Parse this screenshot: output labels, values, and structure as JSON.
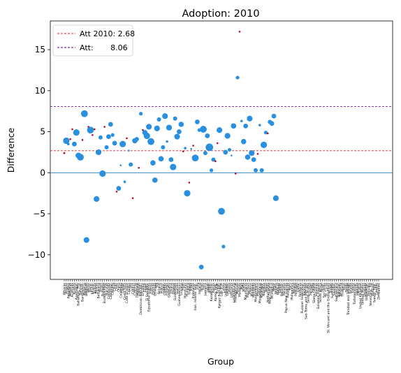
{
  "chart_data": {
    "type": "scatter",
    "title": "Adoption: 2010",
    "xlabel": "Group",
    "ylabel": "Difference",
    "ylim": [
      -13,
      18.5
    ],
    "yticks": [
      -10,
      -5,
      0,
      5,
      10,
      15
    ],
    "ytick_labels": [
      "−10",
      "−5",
      "0",
      "5",
      "10",
      "15"
    ],
    "grid": false,
    "legend_position": "top-left",
    "reference_lines": [
      {
        "label": "Att 2010: 2.68",
        "value": 2.68,
        "color": "#d62728",
        "style": "dashed"
      },
      {
        "label": "Att:       8.06",
        "value": 8.06,
        "color": "#4b0082",
        "style": "dashed"
      },
      {
        "label": "",
        "value": 0,
        "color": "#1f77b4",
        "style": "solid"
      }
    ],
    "colors": {
      "treated": "#2a8fdf",
      "small": "#b30b1d"
    },
    "categories": [
      "Albania",
      "Angola",
      "Argentina",
      "Armenia",
      "Australia",
      "Austria",
      "Azerbaijan",
      "Bahamas, The",
      "Bahrain",
      "Bangladesh",
      "Belarus",
      "Belgium",
      "Belize",
      "Benin",
      "Bhutan",
      "Bolivia",
      "Bosnia",
      "Botswana",
      "Brazil",
      "Bulgaria",
      "Burkina Faso",
      "Burundi",
      "Cambodia",
      "Cameroon",
      "Canada",
      "Chad",
      "Chile",
      "China",
      "Colombia",
      "Congo",
      "Costa Rica",
      "Cote d'Ivoire",
      "Croatia",
      "Cuba",
      "Cyprus",
      "Czechia",
      "Denmark",
      "Djibouti",
      "Dominican Republic",
      "Ecuador",
      "Egypt",
      "El Salvador",
      "Equatorial Guinea",
      "Eritrea",
      "Estonia",
      "Ethiopia",
      "Fiji",
      "Finland",
      "France",
      "Gabon",
      "Gambia",
      "Georgia",
      "Germany",
      "Ghana",
      "Greece",
      "Guatemala",
      "Guinea",
      "Guinea-Bissau",
      "Guyana",
      "Haiti",
      "Honduras",
      "Hungary",
      "Iceland",
      "India",
      "Indonesia",
      "Iran, Islamic Rep.",
      "Iraq",
      "Ireland",
      "Israel",
      "Italy",
      "Jamaica",
      "Japan",
      "Jordan",
      "Kazakhstan",
      "Kenya",
      "Korea, Rep.",
      "Kuwait",
      "Kyrgyz Republic",
      "Lao PDR",
      "Latvia",
      "Lebanon",
      "Lesotho",
      "Liberia",
      "Lithuania",
      "Luxembourg",
      "Madagascar",
      "Malawi",
      "Malaysia",
      "Mali",
      "Malta",
      "Mauritania",
      "Mauritius",
      "Mexico",
      "Moldova",
      "Mongolia",
      "Montenegro",
      "Morocco",
      "Mozambique",
      "Myanmar",
      "Namibia",
      "Nepal",
      "Netherlands",
      "New Zealand",
      "Nicaragua",
      "Niger",
      "Nigeria",
      "Norway",
      "Oman",
      "Pakistan",
      "Panama",
      "Papua New Guinea",
      "Paraguay",
      "Peru",
      "Philippines",
      "Poland",
      "Portugal",
      "Qatar",
      "Romania",
      "Russian Federation",
      "Rwanda",
      "Sao Tome and Principe",
      "Saudi Arabia",
      "Senegal",
      "Serbia",
      "Sierra Leone",
      "Slovenia",
      "Solomon Islands",
      "South Africa",
      "Spain",
      "Sri Lanka",
      "St. Lucia",
      "St. Vincent and the Grenadines",
      "Sudan",
      "Suriname",
      "Sweden",
      "Switzerland",
      "Tajikistan",
      "Tanzania",
      "Thailand",
      "Togo",
      "Tonga",
      "Trinidad and Tobago",
      "Tunisia",
      "Turkey",
      "Turkmenistan",
      "Uganda",
      "Ukraine",
      "United Kingdom",
      "United States",
      "Uruguay",
      "Uzbekistan",
      "Vanuatu",
      "Venezuela, RB",
      "Vietnam",
      "Yemen, Rep.",
      "Zambia",
      "Zimbabwe"
    ],
    "points": [
      {
        "x": 0,
        "y": 2.4,
        "size": 1.4,
        "color": "small"
      },
      {
        "x": 1,
        "y": 3.9,
        "size": 4.6,
        "color": "treated"
      },
      {
        "x": 2,
        "y": 3.5,
        "size": 1.8,
        "color": "treated"
      },
      {
        "x": 3,
        "y": 4.1,
        "size": 1.3,
        "color": "small"
      },
      {
        "x": 4,
        "y": 5.3,
        "size": 1.3,
        "color": "small"
      },
      {
        "x": 5,
        "y": 3.5,
        "size": 3.4,
        "color": "treated"
      },
      {
        "x": 6,
        "y": 4.9,
        "size": 4.6,
        "color": "treated"
      },
      {
        "x": 7,
        "y": 2.1,
        "size": 4.1,
        "color": "treated"
      },
      {
        "x": 8,
        "y": 1.9,
        "size": 4.9,
        "color": "treated"
      },
      {
        "x": 9,
        "y": 4.0,
        "size": 1.3,
        "color": "small"
      },
      {
        "x": 10,
        "y": 7.2,
        "size": 4.9,
        "color": "treated"
      },
      {
        "x": 11,
        "y": -8.2,
        "size": 4.1,
        "color": "treated"
      },
      {
        "x": 12,
        "y": 5.6,
        "size": 1.3,
        "color": "small"
      },
      {
        "x": 13,
        "y": 5.2,
        "size": 4.9,
        "color": "treated"
      },
      {
        "x": 14,
        "y": 4.6,
        "size": 1.3,
        "color": "small"
      },
      {
        "x": 15,
        "y": 5.3,
        "size": 1.3,
        "color": "small"
      },
      {
        "x": 16,
        "y": -3.2,
        "size": 4.1,
        "color": "treated"
      },
      {
        "x": 17,
        "y": 2.5,
        "size": 4.1,
        "color": "treated"
      },
      {
        "x": 18,
        "y": 4.3,
        "size": 3.0,
        "color": "treated"
      },
      {
        "x": 19,
        "y": -0.1,
        "size": 4.6,
        "color": "treated"
      },
      {
        "x": 20,
        "y": 5.6,
        "size": 1.3,
        "color": "small"
      },
      {
        "x": 21,
        "y": 3.1,
        "size": 3.0,
        "color": "treated"
      },
      {
        "x": 22,
        "y": 4.4,
        "size": 3.4,
        "color": "treated"
      },
      {
        "x": 23,
        "y": 5.9,
        "size": 3.4,
        "color": "treated"
      },
      {
        "x": 24,
        "y": 4.6,
        "size": 2.6,
        "color": "treated"
      },
      {
        "x": 25,
        "y": 3.6,
        "size": 3.4,
        "color": "treated"
      },
      {
        "x": 26,
        "y": -2.3,
        "size": 1.3,
        "color": "small"
      },
      {
        "x": 27,
        "y": -1.9,
        "size": 3.4,
        "color": "treated"
      },
      {
        "x": 28,
        "y": 0.9,
        "size": 1.3,
        "color": "treated"
      },
      {
        "x": 29,
        "y": 3.5,
        "size": 4.6,
        "color": "treated"
      },
      {
        "x": 30,
        "y": -1.1,
        "size": 1.8,
        "color": "treated"
      },
      {
        "x": 31,
        "y": 4.2,
        "size": 1.3,
        "color": "small"
      },
      {
        "x": 32,
        "y": 2.7,
        "size": 1.3,
        "color": "treated"
      },
      {
        "x": 33,
        "y": 1.0,
        "size": 3.0,
        "color": "treated"
      },
      {
        "x": 34,
        "y": -3.1,
        "size": 1.3,
        "color": "small"
      },
      {
        "x": 35,
        "y": 3.9,
        "size": 3.8,
        "color": "treated"
      },
      {
        "x": 36,
        "y": 4.1,
        "size": 3.0,
        "color": "treated"
      },
      {
        "x": 37,
        "y": 0.6,
        "size": 1.3,
        "color": "small"
      },
      {
        "x": 38,
        "y": 7.2,
        "size": 2.6,
        "color": "treated"
      },
      {
        "x": 39,
        "y": 5.2,
        "size": 1.3,
        "color": "small"
      },
      {
        "x": 40,
        "y": 4.9,
        "size": 3.8,
        "color": "treated"
      },
      {
        "x": 41,
        "y": 4.5,
        "size": 4.6,
        "color": "treated"
      },
      {
        "x": 42,
        "y": 5.6,
        "size": 4.1,
        "color": "treated"
      },
      {
        "x": 43,
        "y": 3.8,
        "size": 4.9,
        "color": "treated"
      },
      {
        "x": 44,
        "y": 1.2,
        "size": 3.8,
        "color": "treated"
      },
      {
        "x": 45,
        "y": -0.9,
        "size": 3.8,
        "color": "treated"
      },
      {
        "x": 46,
        "y": 5.4,
        "size": 4.1,
        "color": "treated"
      },
      {
        "x": 47,
        "y": 6.5,
        "size": 3.0,
        "color": "treated"
      },
      {
        "x": 48,
        "y": 1.7,
        "size": 3.8,
        "color": "treated"
      },
      {
        "x": 49,
        "y": 3.1,
        "size": 3.0,
        "color": "treated"
      },
      {
        "x": 50,
        "y": 6.9,
        "size": 4.1,
        "color": "treated"
      },
      {
        "x": 51,
        "y": 3.8,
        "size": 1.8,
        "color": "treated"
      },
      {
        "x": 52,
        "y": 5.5,
        "size": 4.1,
        "color": "treated"
      },
      {
        "x": 53,
        "y": 1.6,
        "size": 3.4,
        "color": "treated"
      },
      {
        "x": 54,
        "y": 0.7,
        "size": 4.6,
        "color": "treated"
      },
      {
        "x": 55,
        "y": 6.6,
        "size": 3.0,
        "color": "treated"
      },
      {
        "x": 56,
        "y": 4.4,
        "size": 4.1,
        "color": "treated"
      },
      {
        "x": 57,
        "y": 5.0,
        "size": 3.4,
        "color": "treated"
      },
      {
        "x": 58,
        "y": 5.9,
        "size": 3.8,
        "color": "treated"
      },
      {
        "x": 59,
        "y": 2.6,
        "size": 1.3,
        "color": "small"
      },
      {
        "x": 60,
        "y": 3.0,
        "size": 1.8,
        "color": "treated"
      },
      {
        "x": 61,
        "y": -2.5,
        "size": 4.6,
        "color": "treated"
      },
      {
        "x": 62,
        "y": -1.2,
        "size": 1.3,
        "color": "small"
      },
      {
        "x": 63,
        "y": 2.9,
        "size": 1.3,
        "color": "treated"
      },
      {
        "x": 64,
        "y": 3.3,
        "size": 1.3,
        "color": "small"
      },
      {
        "x": 65,
        "y": 1.8,
        "size": 4.9,
        "color": "treated"
      },
      {
        "x": 66,
        "y": 6.2,
        "size": 3.4,
        "color": "treated"
      },
      {
        "x": 67,
        "y": 5.2,
        "size": 2.6,
        "color": "treated"
      },
      {
        "x": 68,
        "y": -11.5,
        "size": 3.4,
        "color": "treated"
      },
      {
        "x": 69,
        "y": 5.3,
        "size": 4.9,
        "color": "treated"
      },
      {
        "x": 70,
        "y": 2.4,
        "size": 3.0,
        "color": "treated"
      },
      {
        "x": 71,
        "y": 4.5,
        "size": 3.4,
        "color": "treated"
      },
      {
        "x": 72,
        "y": 3.1,
        "size": 5.4,
        "color": "treated"
      },
      {
        "x": 73,
        "y": 0.3,
        "size": 2.6,
        "color": "treated"
      },
      {
        "x": 74,
        "y": 1.6,
        "size": 3.0,
        "color": "treated"
      },
      {
        "x": 75,
        "y": 1.4,
        "size": 1.3,
        "color": "small"
      },
      {
        "x": 76,
        "y": 3.6,
        "size": 1.3,
        "color": "small"
      },
      {
        "x": 77,
        "y": 5.2,
        "size": 4.1,
        "color": "treated"
      },
      {
        "x": 78,
        "y": -4.7,
        "size": 4.9,
        "color": "treated"
      },
      {
        "x": 79,
        "y": -9.0,
        "size": 2.6,
        "color": "treated"
      },
      {
        "x": 80,
        "y": 2.5,
        "size": 3.4,
        "color": "treated"
      },
      {
        "x": 81,
        "y": 4.5,
        "size": 4.1,
        "color": "treated"
      },
      {
        "x": 82,
        "y": 2.8,
        "size": 2.6,
        "color": "treated"
      },
      {
        "x": 83,
        "y": 2.1,
        "size": 1.3,
        "color": "treated"
      },
      {
        "x": 84,
        "y": 5.7,
        "size": 3.8,
        "color": "treated"
      },
      {
        "x": 85,
        "y": -0.1,
        "size": 1.3,
        "color": "small"
      },
      {
        "x": 86,
        "y": 11.6,
        "size": 2.6,
        "color": "treated"
      },
      {
        "x": 87,
        "y": 17.2,
        "size": 1.3,
        "color": "small"
      },
      {
        "x": 88,
        "y": 6.3,
        "size": 1.8,
        "color": "treated"
      },
      {
        "x": 89,
        "y": 3.8,
        "size": 3.8,
        "color": "treated"
      },
      {
        "x": 90,
        "y": 5.7,
        "size": 3.4,
        "color": "treated"
      },
      {
        "x": 91,
        "y": 1.9,
        "size": 3.8,
        "color": "treated"
      },
      {
        "x": 92,
        "y": 6.6,
        "size": 4.1,
        "color": "treated"
      },
      {
        "x": 93,
        "y": 2.4,
        "size": 4.1,
        "color": "treated"
      },
      {
        "x": 94,
        "y": 1.6,
        "size": 3.4,
        "color": "treated"
      },
      {
        "x": 95,
        "y": 0.3,
        "size": 3.0,
        "color": "treated"
      },
      {
        "x": 96,
        "y": 2.3,
        "size": 1.3,
        "color": "small"
      },
      {
        "x": 97,
        "y": 5.8,
        "size": 1.8,
        "color": "treated"
      },
      {
        "x": 98,
        "y": 0.3,
        "size": 3.0,
        "color": "treated"
      },
      {
        "x": 99,
        "y": 3.4,
        "size": 4.6,
        "color": "treated"
      },
      {
        "x": 100,
        "y": 4.9,
        "size": 2.6,
        "color": "treated"
      },
      {
        "x": 101,
        "y": 4.8,
        "size": 1.3,
        "color": "small"
      },
      {
        "x": 102,
        "y": 6.2,
        "size": 3.0,
        "color": "treated"
      },
      {
        "x": 103,
        "y": 6.0,
        "size": 3.4,
        "color": "treated"
      },
      {
        "x": 104,
        "y": 6.9,
        "size": 3.4,
        "color": "treated"
      },
      {
        "x": 105,
        "y": -3.1,
        "size": 4.1,
        "color": "treated"
      }
    ]
  }
}
